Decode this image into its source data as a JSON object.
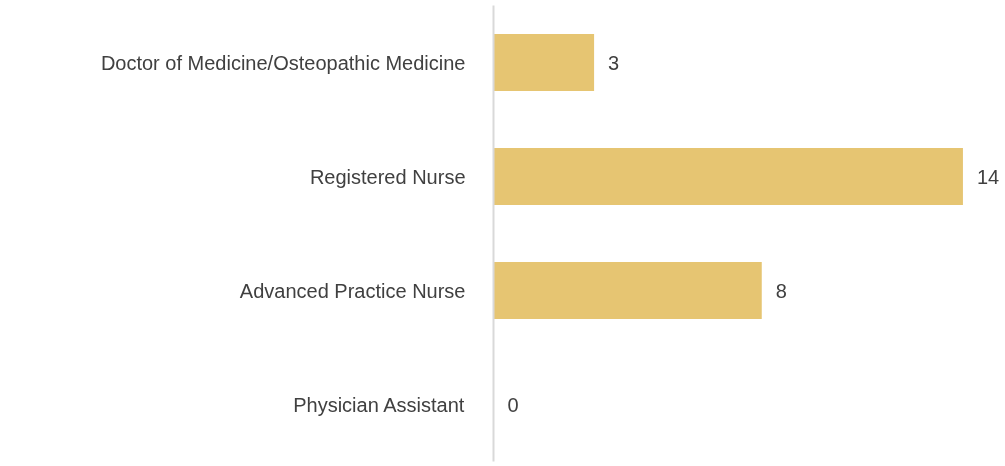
{
  "chart_data": {
    "type": "bar",
    "orientation": "horizontal",
    "categories": [
      "Doctor of Medicine/Osteopathic Medicine",
      "Registered Nurse",
      "Advanced Practice Nurse",
      "Physician Assistant"
    ],
    "values": [
      3,
      14,
      8,
      0
    ],
    "color": "#e6c572",
    "data_labels": true
  }
}
